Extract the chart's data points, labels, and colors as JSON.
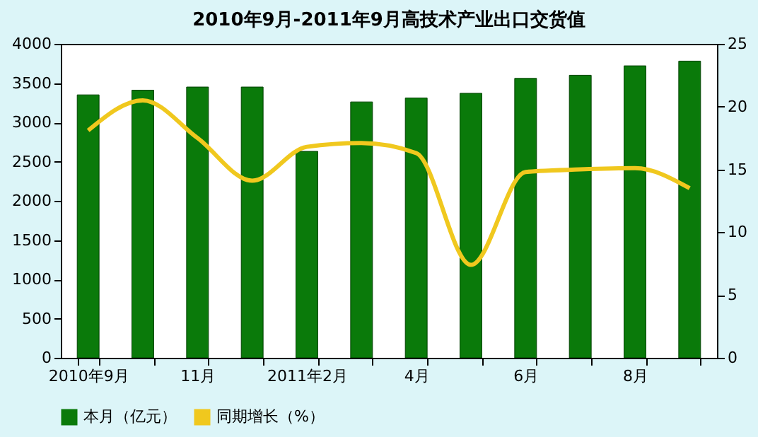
{
  "chart_data": {
    "type": "bar",
    "title": "2010年9月-2011年9月高技术产业出口交货值",
    "categories": [
      "2010年9月",
      null,
      "11月",
      null,
      "2011年2月",
      null,
      "4月",
      null,
      "6月",
      null,
      "8月",
      null
    ],
    "series": [
      {
        "name": "本月（亿元）",
        "color": "#0a7a0a",
        "values": [
          3350,
          3410,
          3450,
          3450,
          2630,
          3260,
          3310,
          3370,
          3560,
          3600,
          3720,
          3780
        ]
      },
      {
        "name": "同期增长（%）",
        "type": "line",
        "axis": "y2",
        "color": "#f0c81e",
        "values": [
          18.1,
          20.5,
          17.5,
          14.1,
          16.8,
          17.1,
          16.3,
          7.4,
          14.8,
          15.0,
          15.1,
          13.5
        ]
      }
    ],
    "ylim": [
      0,
      4000
    ],
    "yticks": [
      0,
      500,
      1000,
      1500,
      2000,
      2500,
      3000,
      3500,
      4000
    ],
    "y2lim": [
      0,
      25
    ],
    "y2ticks": [
      0,
      5,
      10,
      15,
      20,
      25
    ],
    "legend": "bottom",
    "grid": false
  }
}
